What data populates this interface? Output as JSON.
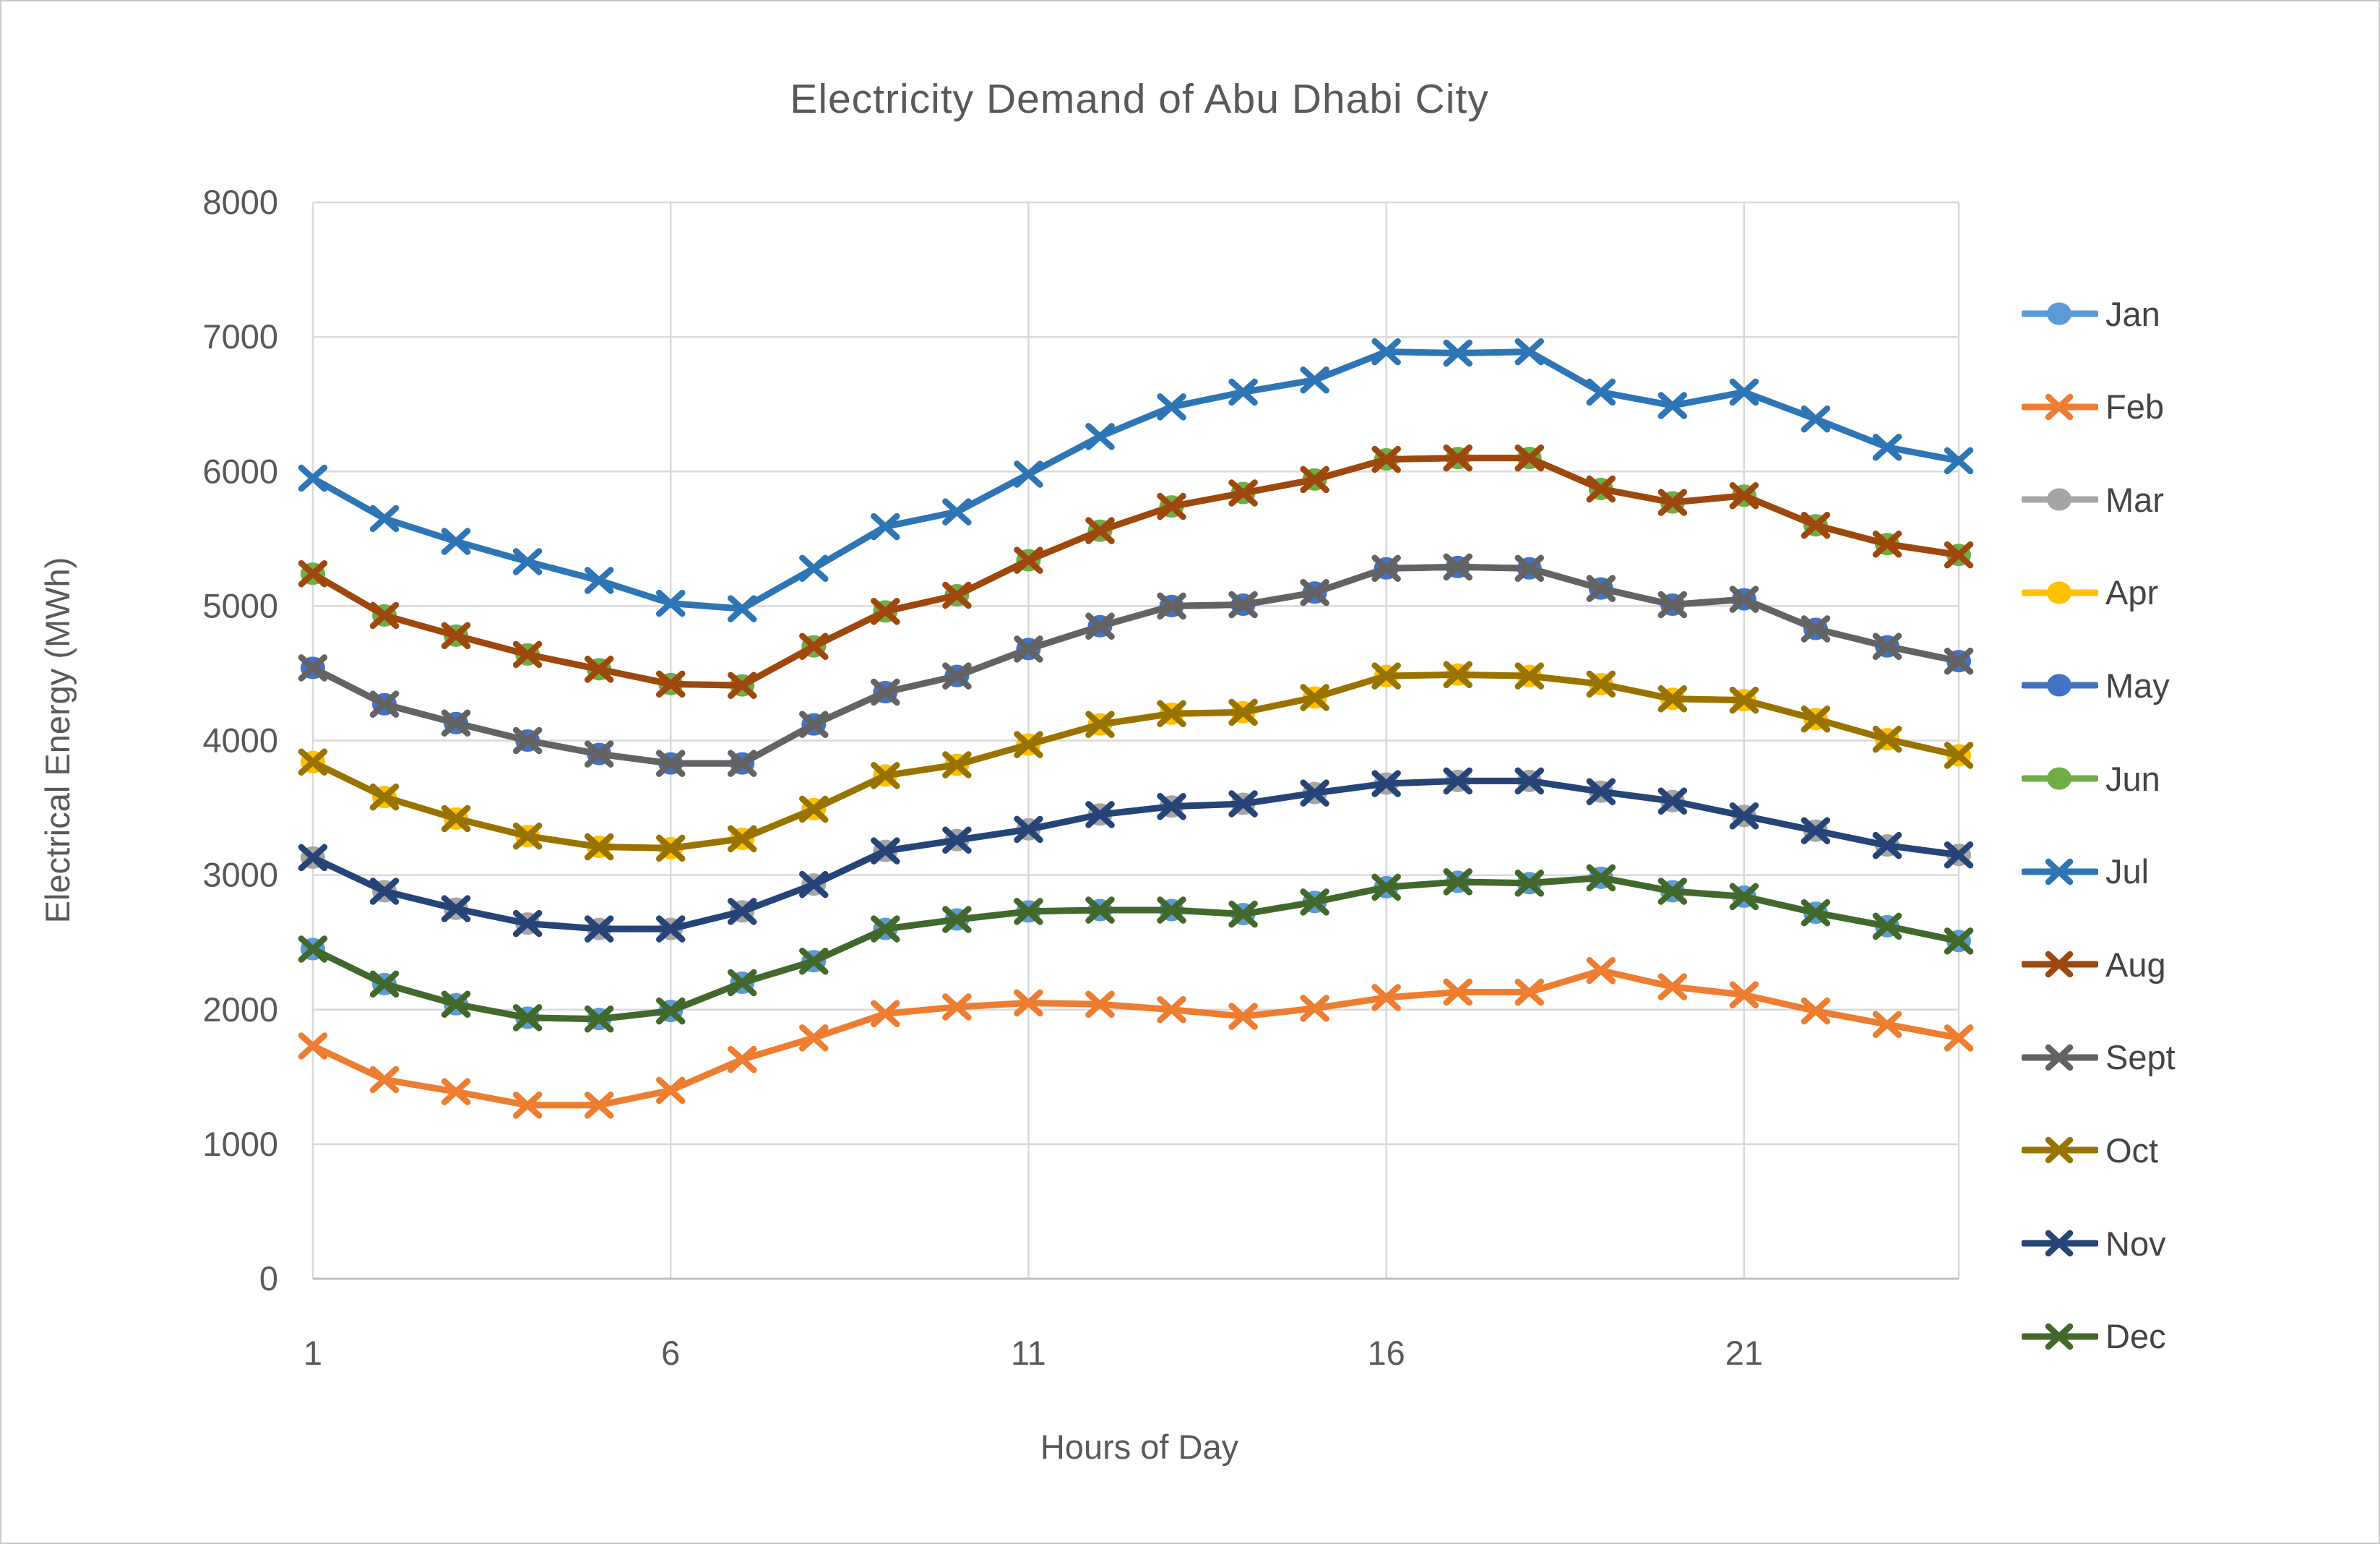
{
  "chart_data": {
    "type": "line",
    "title": "Electricity Demand of Abu Dhabi City",
    "xlabel": "Hours of Day",
    "ylabel": "Electrical Energy (MWh)",
    "x": [
      1,
      2,
      3,
      4,
      5,
      6,
      7,
      8,
      9,
      10,
      11,
      12,
      13,
      14,
      15,
      16,
      17,
      18,
      19,
      20,
      21,
      22,
      23,
      24
    ],
    "xticks": [
      1,
      6,
      11,
      16,
      21
    ],
    "ylim": [
      0,
      8000
    ],
    "ytick_step": 1000,
    "grid": true,
    "legend_position": "right",
    "axis_color": "#BFBFBF",
    "grid_color": "#D9D9D9",
    "text_color": "#595959",
    "series": [
      {
        "name": "Jan",
        "color": "#5B9BD5",
        "marker": "circle",
        "values": [
          2450,
          2190,
          2040,
          1940,
          1930,
          1990,
          2200,
          2360,
          2600,
          2670,
          2730,
          2740,
          2740,
          2710,
          2800,
          2910,
          2950,
          2940,
          2980,
          2880,
          2840,
          2720,
          2620,
          2510
        ]
      },
      {
        "name": "Feb",
        "color": "#ED7D31",
        "marker": "x",
        "values": [
          1730,
          1480,
          1390,
          1290,
          1290,
          1400,
          1630,
          1790,
          1970,
          2020,
          2050,
          2040,
          2000,
          1950,
          2010,
          2090,
          2130,
          2130,
          2290,
          2170,
          2110,
          1990,
          1890,
          1790
        ]
      },
      {
        "name": "Mar",
        "color": "#A5A5A5",
        "marker": "circle",
        "values": [
          3130,
          2880,
          2750,
          2640,
          2600,
          2600,
          2730,
          2930,
          3180,
          3260,
          3340,
          3450,
          3510,
          3530,
          3610,
          3680,
          3700,
          3700,
          3620,
          3550,
          3440,
          3330,
          3220,
          3150
        ]
      },
      {
        "name": "Apr",
        "color": "#FFC000",
        "marker": "circle",
        "values": [
          3840,
          3580,
          3420,
          3290,
          3210,
          3200,
          3270,
          3490,
          3740,
          3820,
          3970,
          4120,
          4200,
          4210,
          4320,
          4480,
          4490,
          4480,
          4420,
          4310,
          4300,
          4160,
          4010,
          3890
        ]
      },
      {
        "name": "May",
        "color": "#4472C4",
        "marker": "circle",
        "values": [
          4540,
          4270,
          4130,
          4000,
          3900,
          3830,
          3830,
          4120,
          4360,
          4480,
          4680,
          4850,
          5000,
          5010,
          5100,
          5280,
          5290,
          5280,
          5130,
          5010,
          5050,
          4830,
          4700,
          4590
        ]
      },
      {
        "name": "Jun",
        "color": "#70AD47",
        "marker": "circle",
        "values": [
          5240,
          4930,
          4780,
          4640,
          4530,
          4420,
          4410,
          4700,
          4960,
          5080,
          5340,
          5560,
          5740,
          5840,
          5940,
          6090,
          6100,
          6100,
          5870,
          5770,
          5820,
          5600,
          5460,
          5380
        ]
      },
      {
        "name": "Jul",
        "color": "#2E75B6",
        "marker": "x",
        "values": [
          5950,
          5650,
          5480,
          5330,
          5190,
          5020,
          4980,
          5280,
          5590,
          5700,
          5980,
          6260,
          6480,
          6590,
          6680,
          6890,
          6880,
          6890,
          6590,
          6490,
          6590,
          6390,
          6180,
          6080
        ]
      },
      {
        "name": "Aug",
        "color": "#9E480E",
        "marker": "x",
        "values": [
          5240,
          4930,
          4780,
          4640,
          4530,
          4420,
          4410,
          4700,
          4960,
          5080,
          5340,
          5560,
          5740,
          5840,
          5940,
          6090,
          6100,
          6100,
          5870,
          5770,
          5820,
          5600,
          5460,
          5380
        ]
      },
      {
        "name": "Sept",
        "color": "#636363",
        "marker": "x",
        "values": [
          4540,
          4270,
          4130,
          4000,
          3900,
          3830,
          3830,
          4120,
          4360,
          4480,
          4680,
          4850,
          5000,
          5010,
          5100,
          5280,
          5290,
          5280,
          5130,
          5010,
          5050,
          4830,
          4700,
          4590
        ]
      },
      {
        "name": "Oct",
        "color": "#997300",
        "marker": "x",
        "values": [
          3840,
          3580,
          3420,
          3290,
          3210,
          3200,
          3270,
          3490,
          3740,
          3820,
          3970,
          4120,
          4200,
          4210,
          4320,
          4480,
          4490,
          4480,
          4420,
          4310,
          4300,
          4160,
          4010,
          3890
        ]
      },
      {
        "name": "Nov",
        "color": "#264478",
        "marker": "x",
        "values": [
          3130,
          2880,
          2750,
          2640,
          2600,
          2600,
          2730,
          2930,
          3180,
          3260,
          3340,
          3450,
          3510,
          3530,
          3610,
          3680,
          3700,
          3700,
          3620,
          3550,
          3440,
          3330,
          3220,
          3150
        ]
      },
      {
        "name": "Dec",
        "color": "#43682B",
        "marker": "x",
        "values": [
          2450,
          2190,
          2040,
          1940,
          1930,
          1990,
          2200,
          2360,
          2600,
          2670,
          2730,
          2740,
          2740,
          2710,
          2800,
          2910,
          2950,
          2940,
          2980,
          2880,
          2840,
          2720,
          2620,
          2510
        ]
      }
    ]
  }
}
